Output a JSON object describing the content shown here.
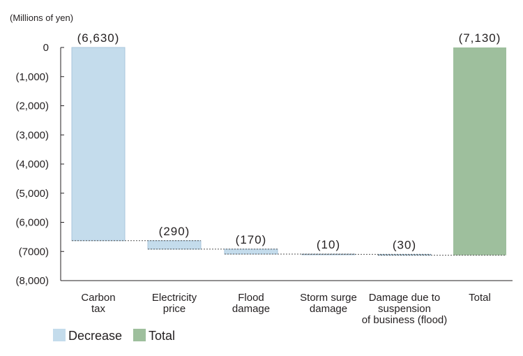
{
  "unit_label": "(Millions of yen)",
  "chart_data": {
    "type": "bar",
    "subtype": "waterfall",
    "categories": [
      [
        "Carbon",
        "tax"
      ],
      [
        "Electricity",
        "price"
      ],
      [
        "Flood",
        "damage"
      ],
      [
        "Storm surge",
        "damage"
      ],
      [
        "Damage due to",
        "suspension",
        "of business (flood)"
      ],
      [
        "Total"
      ]
    ],
    "values": [
      -6630,
      -290,
      -170,
      -10,
      -30,
      -7130
    ],
    "value_labels": [
      "(6,630)",
      "(290)",
      "(170)",
      "(10)",
      "(30)",
      "(7,130)"
    ],
    "kinds": [
      "decrease",
      "decrease",
      "decrease",
      "decrease",
      "decrease",
      "total"
    ],
    "ylim": [
      -8000,
      0
    ],
    "yticks": [
      0,
      -1000,
      -2000,
      -3000,
      -4000,
      -5000,
      -6000,
      -7000,
      -8000
    ],
    "ytick_labels": [
      "0",
      "(1,000)",
      "(2,000)",
      "(3,000)",
      "(4,000)",
      "(5,000)",
      "(6,000)",
      "(7000)",
      "(8,000)"
    ],
    "legend": [
      {
        "label": "Decrease",
        "color": "#c4dcec"
      },
      {
        "label": "Total",
        "color": "#9ebf9d"
      }
    ],
    "legend_position": "bottom-left",
    "colors": {
      "decrease": "#c4dcec",
      "decrease_edge": "#a8c6dc",
      "total": "#9ebf9d"
    },
    "grid": false
  }
}
